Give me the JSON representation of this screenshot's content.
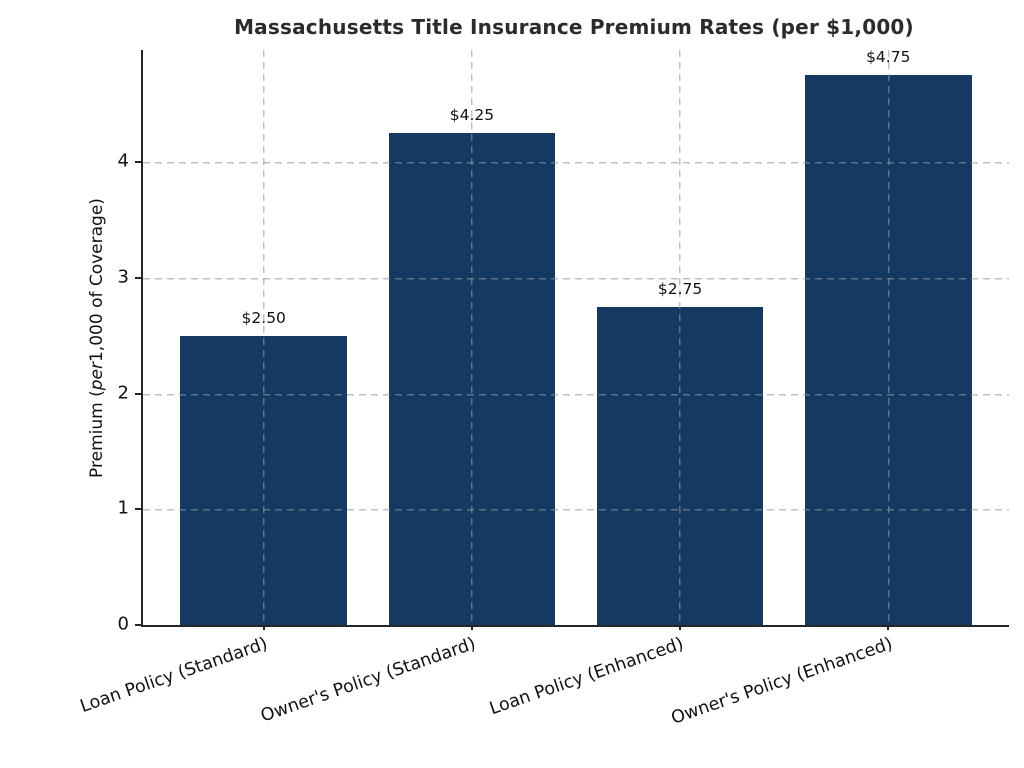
{
  "chart_data": {
    "type": "bar",
    "title": "Massachusetts Title Insurance Premium Rates (per $1,000)",
    "categories": [
      "Loan Policy (Standard)",
      "Owner's Policy (Standard)",
      "Loan Policy (Enhanced)",
      "Owner's Policy (Enhanced)"
    ],
    "values": [
      2.5,
      4.25,
      2.75,
      4.75
    ],
    "value_labels": [
      "$2.50",
      "$4.25",
      "$2.75",
      "$4.75"
    ],
    "ylabel_parts": {
      "prefix": "Premium (",
      "italic": "per",
      "suffix": "1,000 of Coverage)"
    },
    "yticks": [
      0,
      1,
      2,
      3,
      4
    ],
    "ylim": [
      0,
      4.97
    ],
    "bar_color": "#143a63",
    "grid": "dashed, both axes, drawn over bars",
    "legend": "none",
    "xlabel": ""
  }
}
